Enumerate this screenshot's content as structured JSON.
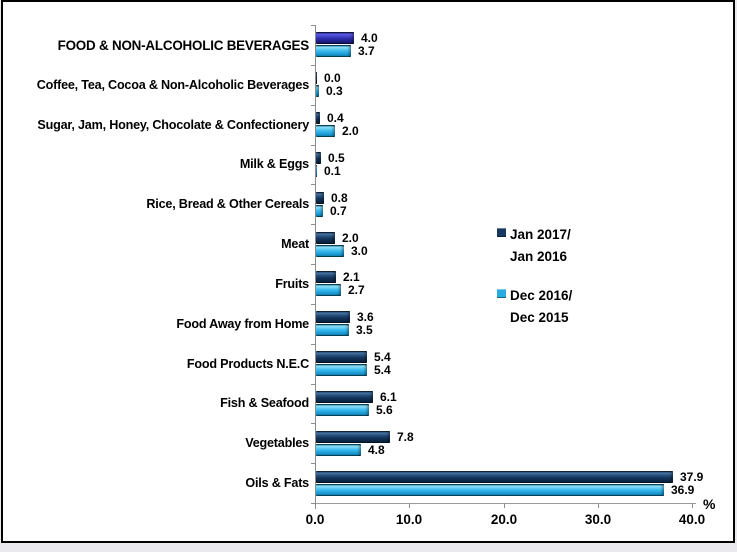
{
  "chart_data": {
    "type": "bar",
    "orientation": "horizontal",
    "title": "",
    "categories": [
      "FOOD & NON-ALCOHOLIC BEVERAGES",
      "Coffee, Tea, Cocoa & Non-Alcoholic Beverages",
      "Sugar, Jam, Honey, Chocolate & Confectionery",
      "Milk & Eggs",
      "Rice, Bread & Other Cereals",
      "Meat",
      "Fruits",
      "Food Away from Home",
      "Food Products N.E.C",
      "Fish & Seafood",
      "Vegetables",
      "Oils & Fats"
    ],
    "series": [
      {
        "name": "Jan 2017/Jan 2016",
        "legend_lines": [
          "Jan 2017/",
          "Jan 2016"
        ],
        "color": "#17375E",
        "first_bar_color": "#3C3CC4",
        "values": [
          4.0,
          0.0,
          0.4,
          0.5,
          0.8,
          2.0,
          2.1,
          3.6,
          5.4,
          6.1,
          7.8,
          37.9
        ]
      },
      {
        "name": "Dec 2016/Dec 2015",
        "legend_lines": [
          "Dec 2016/",
          "Dec 2015"
        ],
        "color": "#29ABE2",
        "values": [
          3.7,
          0.3,
          2.0,
          0.1,
          0.7,
          3.0,
          2.7,
          3.5,
          5.4,
          5.6,
          4.8,
          36.9
        ]
      }
    ],
    "value_labels": true,
    "value_label_decimals": 1,
    "xlabel": "%",
    "x_tick_labels": [
      "0.0",
      "10.0",
      "20.0",
      "30.0",
      "40.0"
    ],
    "x_tick_values": [
      0,
      10,
      20,
      30,
      40
    ],
    "xlim": [
      0,
      40
    ],
    "grid": false,
    "legend_position": "middle-right"
  },
  "colors": {
    "navy": "#17375E",
    "cyan": "#29ABE2",
    "royal_blue": "#3C3CC4",
    "axis_gray": "#8C8C8C",
    "background": "#FFFFFF",
    "border": "#000000"
  }
}
